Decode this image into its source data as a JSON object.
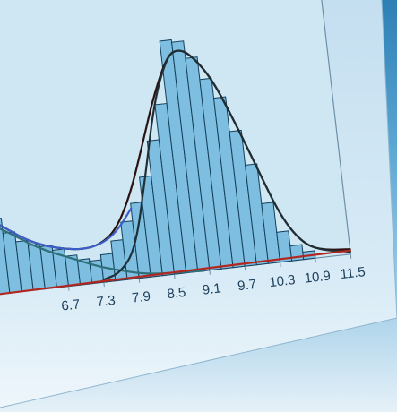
{
  "chart_data": {
    "type": "histogram",
    "title": "",
    "xlabel": "",
    "ylabel": "",
    "x_tick_labels": [
      "6.7",
      "7.3",
      "7.9",
      "8.5",
      "9.1",
      "9.7",
      "10.3",
      "10.9",
      "11.5"
    ],
    "x_tick_values": [
      6.7,
      7.3,
      7.9,
      8.5,
      9.1,
      9.7,
      10.3,
      10.9,
      11.5
    ],
    "xlim": [
      5.5,
      11.5
    ],
    "ylim": [
      0,
      100
    ],
    "bin_width": 0.2,
    "bins": [
      {
        "x": 5.5,
        "value": 30
      },
      {
        "x": 5.7,
        "value": 24
      },
      {
        "x": 5.9,
        "value": 20
      },
      {
        "x": 6.1,
        "value": 18
      },
      {
        "x": 6.3,
        "value": 17
      },
      {
        "x": 6.5,
        "value": 15
      },
      {
        "x": 6.7,
        "value": 12
      },
      {
        "x": 6.9,
        "value": 10
      },
      {
        "x": 7.1,
        "value": 9
      },
      {
        "x": 7.3,
        "value": 11
      },
      {
        "x": 7.5,
        "value": 16
      },
      {
        "x": 7.7,
        "value": 23
      },
      {
        "x": 7.9,
        "value": 30
      },
      {
        "x": 8.1,
        "value": 40
      },
      {
        "x": 8.3,
        "value": 54
      },
      {
        "x": 8.5,
        "value": 68
      },
      {
        "x": 8.7,
        "value": 93
      },
      {
        "x": 8.9,
        "value": 92
      },
      {
        "x": 9.1,
        "value": 85
      },
      {
        "x": 9.3,
        "value": 76
      },
      {
        "x": 9.5,
        "value": 68
      },
      {
        "x": 9.7,
        "value": 54
      },
      {
        "x": 9.9,
        "value": 40
      },
      {
        "x": 10.1,
        "value": 24
      },
      {
        "x": 10.3,
        "value": 12
      },
      {
        "x": 10.5,
        "value": 6
      },
      {
        "x": 10.7,
        "value": 3
      }
    ],
    "curves": [
      {
        "role": "total fit",
        "color": "#2a1210",
        "points": [
          [
            5.5,
            30
          ],
          [
            5.8,
            25
          ],
          [
            6.1,
            20
          ],
          [
            6.4,
            17
          ],
          [
            6.7,
            15
          ],
          [
            7.0,
            14
          ],
          [
            7.3,
            15
          ],
          [
            7.6,
            20
          ],
          [
            7.9,
            33
          ],
          [
            8.2,
            52
          ],
          [
            8.5,
            72
          ],
          [
            8.8,
            87
          ],
          [
            9.0,
            89
          ],
          [
            9.2,
            86
          ],
          [
            9.5,
            76
          ],
          [
            9.8,
            58
          ],
          [
            10.1,
            38
          ],
          [
            10.4,
            18
          ],
          [
            10.7,
            7
          ],
          [
            11.0,
            3
          ],
          [
            11.5,
            2
          ]
        ]
      },
      {
        "role": "left component",
        "color": "#2f6f7a",
        "points": [
          [
            5.5,
            28
          ],
          [
            5.8,
            24
          ],
          [
            6.1,
            19
          ],
          [
            6.4,
            15
          ],
          [
            6.7,
            12
          ],
          [
            7.0,
            9
          ],
          [
            7.3,
            6
          ],
          [
            7.6,
            4
          ],
          [
            7.9,
            2
          ],
          [
            8.2,
            1
          ],
          [
            8.6,
            0.5
          ],
          [
            9.0,
            0
          ]
        ]
      },
      {
        "role": "left component outline",
        "color": "#3b5ec8",
        "points": [
          [
            5.5,
            30
          ],
          [
            5.8,
            25
          ],
          [
            6.1,
            20
          ],
          [
            6.4,
            17
          ],
          [
            6.7,
            15
          ],
          [
            7.0,
            14
          ],
          [
            7.3,
            15
          ],
          [
            7.6,
            19
          ],
          [
            7.9,
            28
          ]
        ]
      },
      {
        "role": "right component",
        "color": "#1f2f35",
        "points": [
          [
            7.3,
            1
          ],
          [
            7.6,
            3
          ],
          [
            7.9,
            12
          ],
          [
            8.2,
            40
          ],
          [
            8.5,
            70
          ],
          [
            8.8,
            87
          ],
          [
            9.0,
            89
          ],
          [
            9.2,
            86
          ],
          [
            9.5,
            76
          ],
          [
            9.8,
            58
          ],
          [
            10.1,
            38
          ],
          [
            10.4,
            18
          ],
          [
            10.7,
            7
          ],
          [
            11.0,
            3
          ],
          [
            11.5,
            1
          ]
        ]
      },
      {
        "role": "baseline",
        "color": "#b3261e",
        "points": [
          [
            5.5,
            0
          ],
          [
            11.5,
            1.5
          ]
        ]
      }
    ],
    "grid": false,
    "legend": "none"
  },
  "colors": {
    "bar_fill": "#7ebee0",
    "bar_stroke": "#14405c",
    "plot_background": "#cfe6f3",
    "axis": "#6e8fa8",
    "tick_text": "#1d3f5a"
  }
}
